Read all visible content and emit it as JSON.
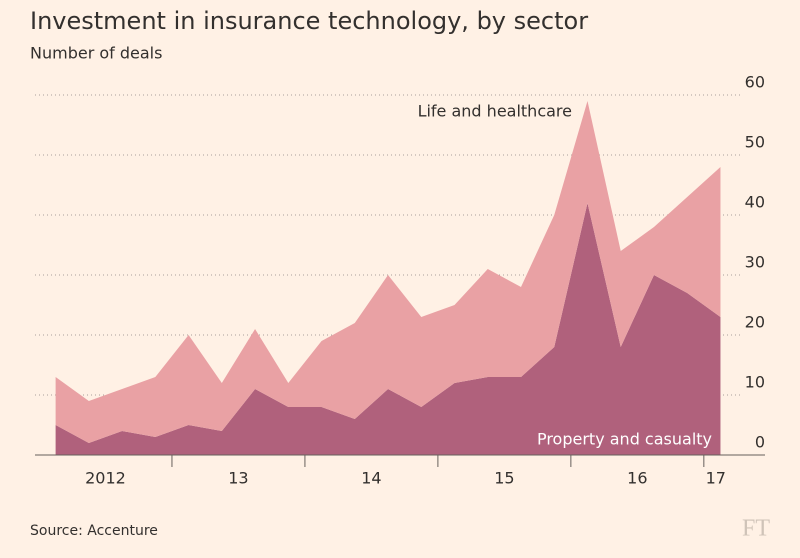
{
  "chart_data": {
    "type": "stacked-area",
    "title": "Investment in insurance technology, by sector",
    "subtitle": "Number of deals",
    "source": "Source: Accenture",
    "logo": "FT",
    "x": [
      2012.125,
      2012.375,
      2012.625,
      2012.875,
      2013.125,
      2013.375,
      2013.625,
      2013.875,
      2014.125,
      2014.375,
      2014.625,
      2014.875,
      2015.125,
      2015.375,
      2015.625,
      2015.875,
      2016.125,
      2016.375,
      2016.625,
      2016.875,
      2017.125
    ],
    "series": [
      {
        "name": "Property and casualty",
        "color": "#b0617c",
        "values": [
          5,
          2,
          4,
          3,
          5,
          4,
          11,
          8,
          8,
          6,
          11,
          8,
          12,
          13,
          13,
          18,
          42,
          18,
          30,
          27,
          23
        ]
      },
      {
        "name": "Life and healthcare",
        "color": "#e9a1a4",
        "values": [
          8,
          7,
          7,
          10,
          15,
          8,
          10,
          4,
          11,
          16,
          19,
          15,
          13,
          18,
          15,
          22,
          17,
          16,
          8,
          16,
          25
        ]
      }
    ],
    "xlim": [
      2011.97,
      2017.46
    ],
    "xticks": [
      {
        "value": 2012.5,
        "label": "2012"
      },
      {
        "value": 2013.5,
        "label": "13"
      },
      {
        "value": 2014.5,
        "label": "14"
      },
      {
        "value": 2015.5,
        "label": "15"
      },
      {
        "value": 2016.5,
        "label": "16"
      },
      {
        "value": 2017.09,
        "label": "17"
      }
    ],
    "xtick_marks": [
      2013,
      2014,
      2015,
      2016,
      2017
    ],
    "ylim": [
      0,
      60
    ],
    "yticks": [
      0,
      10,
      20,
      30,
      40,
      50,
      60
    ],
    "grid": true
  }
}
